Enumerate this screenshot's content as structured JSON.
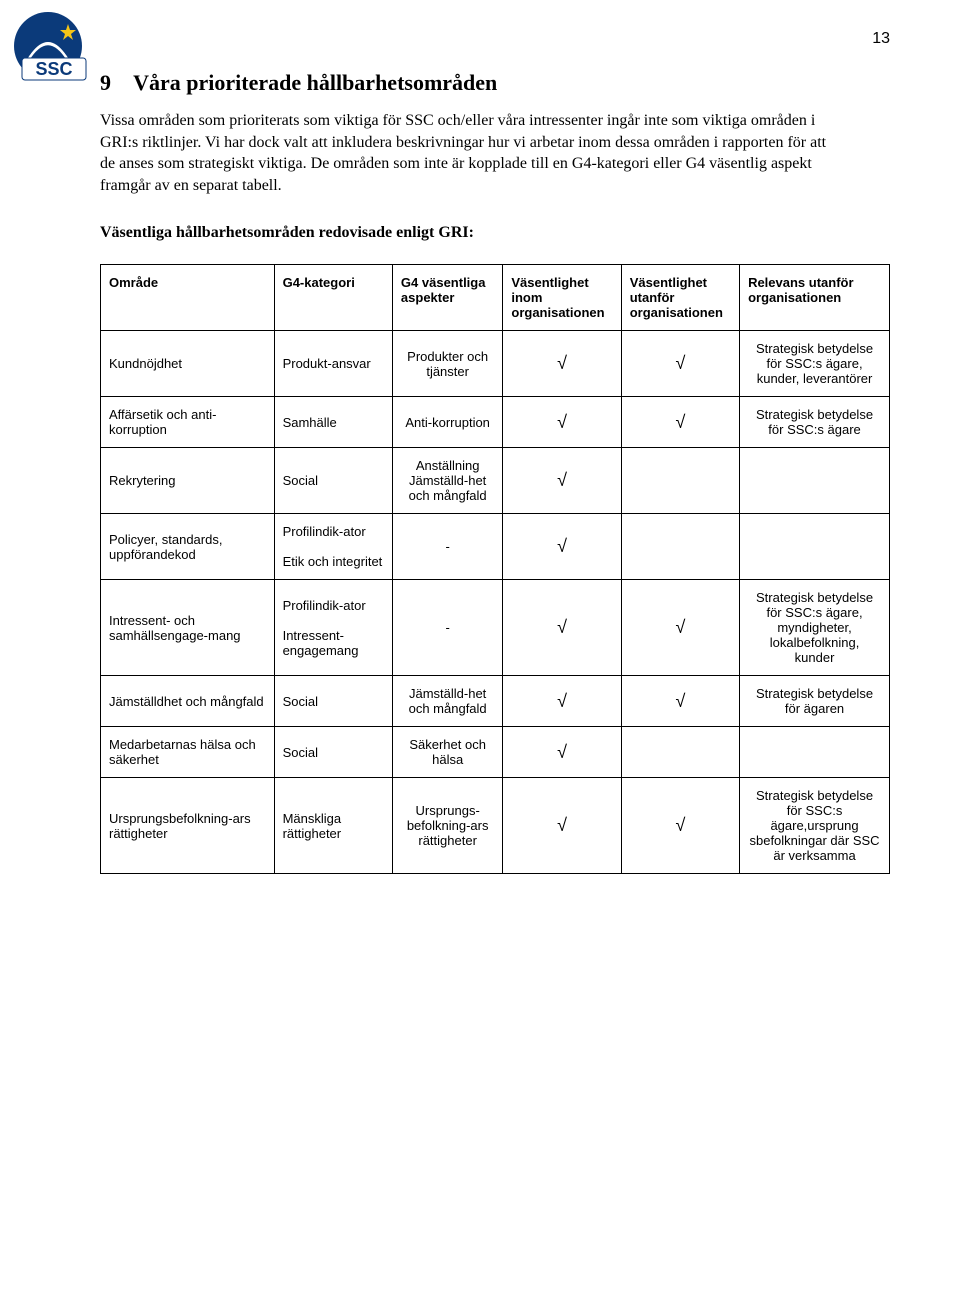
{
  "page_number": "13",
  "logo_text": "SSC",
  "logo_colors": {
    "circle": "#0b3a7a",
    "text_bg": "#ffffff",
    "text": "#0b3a7a",
    "star": "#f5c518"
  },
  "heading_num": "9",
  "heading_title": "Våra prioriterade hållbarhetsområden",
  "paragraph": "Vissa områden som prioriterats som viktiga för SSC och/eller våra intressenter ingår inte som viktiga områden i GRI:s riktlinjer. Vi har dock valt att inkludera beskrivningar hur vi arbetar inom dessa områden i rapporten för att de anses som strategiskt viktiga. De områden som inte är kopplade till en G4-kategori eller G4 väsentlig aspekt framgår av en separat tabell.",
  "table_caption": "Väsentliga hållbarhetsområden redovisade enligt GRI:",
  "columns": {
    "area": "Område",
    "category": "G4-kategori",
    "aspects": "G4 väsentliga aspekter",
    "inside": "Väsentlighet inom organisationen",
    "outside": "Väsentlighet utanför organisationen",
    "relevance": "Relevans utanför organisationen"
  },
  "rows": [
    {
      "area": "Kundnöjdhet",
      "category": "Produkt-ansvar",
      "aspects": "Produkter och tjänster",
      "inside": "√",
      "outside": "√",
      "relevance": "Strategisk betydelse för SSC:s ägare, kunder, leverantörer"
    },
    {
      "area": "Affärsetik och anti-korruption",
      "category": "Samhälle",
      "aspects": "Anti-korruption",
      "inside": "√",
      "outside": "√",
      "relevance": "Strategisk betydelse för SSC:s ägare"
    },
    {
      "area": "Rekrytering",
      "category": "Social",
      "aspects": "Anställning Jämställd-het och mångfald",
      "inside": "√",
      "outside": "",
      "relevance": ""
    },
    {
      "area": "Policyer, standards, uppförandekod",
      "category": "Profilindik-ator\nEtik och integritet",
      "aspects": "-",
      "inside": "√",
      "outside": "",
      "relevance": ""
    },
    {
      "area": "Intressent- och samhällsengage-mang",
      "category": "Profilindik-ator\nIntressent-engagemang",
      "aspects": "-",
      "inside": "√",
      "outside": "√",
      "relevance": "Strategisk betydelse för SSC:s ägare, myndigheter, lokalbefolkning, kunder"
    },
    {
      "area": "Jämställdhet och mångfald",
      "category": "Social",
      "aspects": "Jämställd-het och mångfald",
      "inside": "√",
      "outside": "√",
      "relevance": "Strategisk betydelse för ägaren"
    },
    {
      "area": "Medarbetarnas hälsa och säkerhet",
      "category": "Social",
      "aspects": "Säkerhet och hälsa",
      "inside": "√",
      "outside": "",
      "relevance": ""
    },
    {
      "area": "Ursprungsbefolkning-ars rättigheter",
      "category": "Mänskliga rättigheter",
      "aspects": "Ursprungs-befolkning-ars rättigheter",
      "inside": "√",
      "outside": "√",
      "relevance": "Strategisk betydelse för SSC:s ägare,ursprung sbefolkningar där SSC är verksamma"
    }
  ]
}
